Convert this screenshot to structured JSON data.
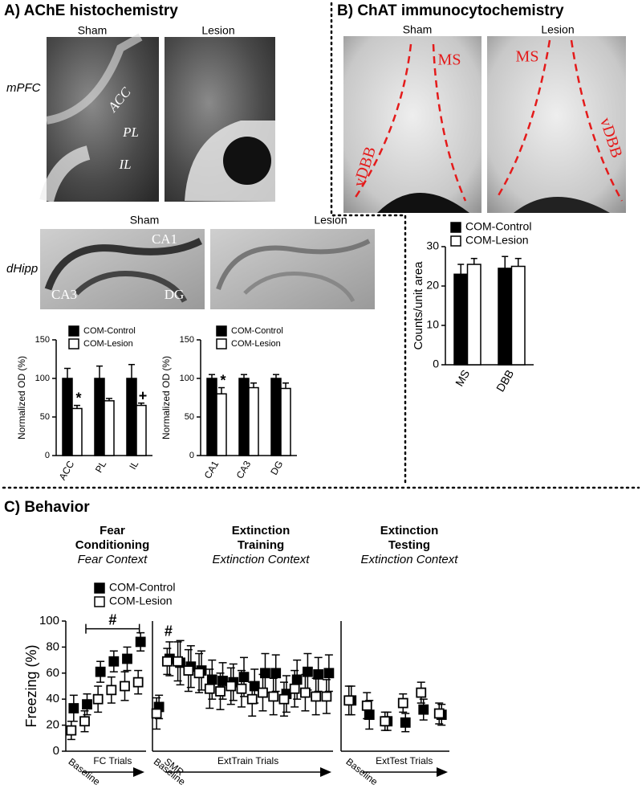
{
  "panel_a": {
    "title": "A) AChE histochemistry",
    "rows": [
      {
        "label": "mPFC",
        "images": [
          {
            "caption": "Sham",
            "regions": [
              "ACC",
              "PL",
              "IL"
            ]
          },
          {
            "caption": "Lesion"
          }
        ]
      },
      {
        "label": "dHipp",
        "images": [
          {
            "caption": "Sham",
            "regions": [
              "CA1",
              "CA3",
              "DG"
            ]
          },
          {
            "caption": "Lesion"
          }
        ]
      }
    ]
  },
  "panel_b": {
    "title": "B) ChAT immunocytochemistry",
    "images": [
      {
        "caption": "Sham",
        "regions": [
          "MS",
          "vDBB"
        ]
      },
      {
        "caption": "Lesion",
        "regions": [
          "MS",
          "vDBB"
        ]
      }
    ]
  },
  "panel_c": {
    "title": "C) Behavior"
  },
  "chart_data": [
    {
      "type": "bar",
      "ylabel": "Normalized OD (%)",
      "categories": [
        "ACC",
        "PL",
        "IL"
      ],
      "series": [
        {
          "name": "COM-Control",
          "color": "#000000",
          "values": [
            100,
            100,
            100
          ],
          "errors": [
            13,
            16,
            18
          ]
        },
        {
          "name": "COM-Lesion",
          "color": "#ffffff",
          "values": [
            61,
            71,
            65
          ],
          "errors": [
            4,
            3,
            3
          ]
        }
      ],
      "ylim": [
        0,
        150
      ],
      "yticks": [
        0,
        50,
        100,
        150
      ],
      "annotations": [
        {
          "text": "*",
          "category": "ACC"
        },
        {
          "text": "+",
          "category": "IL"
        }
      ]
    },
    {
      "type": "bar",
      "ylabel": "Normalized OD (%)",
      "categories": [
        "CA1",
        "CA3",
        "DG"
      ],
      "series": [
        {
          "name": "COM-Control",
          "color": "#000000",
          "values": [
            100,
            100,
            100
          ],
          "errors": [
            5,
            5,
            5
          ]
        },
        {
          "name": "COM-Lesion",
          "color": "#ffffff",
          "values": [
            80,
            88,
            87
          ],
          "errors": [
            8,
            6,
            7
          ]
        }
      ],
      "ylim": [
        0,
        150
      ],
      "yticks": [
        0,
        50,
        100,
        150
      ],
      "annotations": [
        {
          "text": "*",
          "category": "CA1"
        }
      ]
    },
    {
      "type": "bar",
      "ylabel": "Counts/unit area",
      "categories": [
        "MS",
        "DBB"
      ],
      "series": [
        {
          "name": "COM-Control",
          "color": "#000000",
          "values": [
            23,
            24.5
          ],
          "errors": [
            2.5,
            3
          ]
        },
        {
          "name": "COM-Lesion",
          "color": "#ffffff",
          "values": [
            25.5,
            25
          ],
          "errors": [
            1.5,
            2
          ]
        }
      ],
      "ylim": [
        0,
        30
      ],
      "yticks": [
        0,
        10,
        20,
        30
      ]
    },
    {
      "type": "dot",
      "title": "Fear Conditioning",
      "subtitle": "Fear Context",
      "ylabel": "Freezing (%)",
      "x_label": "FC Trials",
      "categories": [
        "Baseline",
        null,
        null,
        null,
        null,
        null
      ],
      "series": [
        {
          "name": "COM-Control",
          "color": "#000000",
          "values": [
            33,
            36,
            61,
            69,
            71,
            84
          ],
          "errors": [
            10,
            8,
            8,
            8,
            9,
            7
          ]
        },
        {
          "name": "COM-Lesion",
          "color": "#ffffff",
          "values": [
            16,
            23,
            40,
            47,
            50,
            53
          ],
          "errors": [
            7,
            8,
            10,
            10,
            11,
            9
          ]
        }
      ],
      "ylim": [
        0,
        100
      ],
      "yticks": [
        0,
        20,
        40,
        60,
        80,
        100
      ],
      "annotations": [
        {
          "text": "#"
        }
      ]
    },
    {
      "type": "dot",
      "title": "Extinction Training",
      "subtitle": "Extinction Context",
      "x_label": "ExtTrain Trials",
      "categories": [
        "Baseline",
        "SMR",
        null,
        null,
        null,
        null,
        null,
        null,
        null,
        null,
        null,
        null,
        null,
        null,
        null,
        null,
        null
      ],
      "series": [
        {
          "color": "#000000",
          "values": [
            34,
            71,
            68,
            65,
            62,
            55,
            54,
            53,
            57,
            50,
            60,
            60,
            44,
            55,
            61,
            59,
            60
          ],
          "errors": [
            9,
            13,
            17,
            16,
            15,
            15,
            14,
            14,
            15,
            13,
            15,
            14,
            14,
            15,
            14,
            13,
            14
          ]
        },
        {
          "color": "#ffffff",
          "values": [
            29,
            69,
            69,
            62,
            60,
            48,
            46,
            50,
            48,
            40,
            45,
            42,
            40,
            48,
            45,
            42,
            42
          ],
          "errors": [
            12,
            10,
            15,
            16,
            15,
            15,
            14,
            14,
            14,
            13,
            14,
            14,
            13,
            14,
            14,
            14,
            13
          ]
        }
      ],
      "ylim": [
        0,
        100
      ],
      "annotations": [
        {
          "text": "#",
          "category": "SMR"
        }
      ]
    },
    {
      "type": "dot",
      "title": "Extinction Testing",
      "subtitle": "Extinction Context",
      "x_label": "ExtTest Trials",
      "categories": [
        "Baseline",
        null,
        null,
        null,
        null,
        null
      ],
      "series": [
        {
          "color": "#000000",
          "values": [
            39,
            28,
            23,
            22,
            32,
            28
          ],
          "errors": [
            11,
            11,
            7,
            7,
            8,
            8
          ]
        },
        {
          "color": "#ffffff",
          "values": [
            39,
            35,
            23,
            37,
            45,
            29
          ],
          "errors": [
            11,
            10,
            7,
            7,
            8,
            8
          ]
        }
      ],
      "ylim": [
        0,
        100
      ]
    }
  ]
}
